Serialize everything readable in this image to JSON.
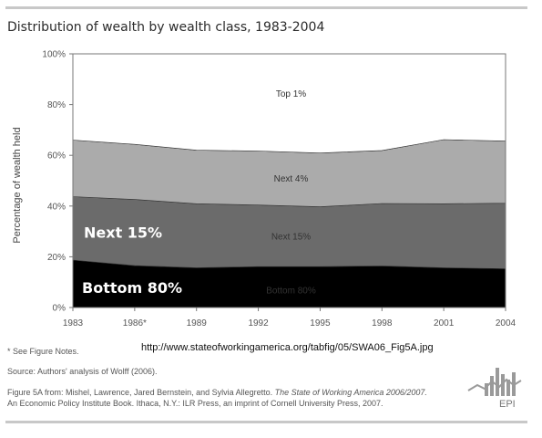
{
  "header": {
    "title": "Distribution of wealth by wealth class, 1983-2004"
  },
  "chart_data": {
    "type": "area",
    "stacked": true,
    "categories": [
      "1983",
      "1986*",
      "1989",
      "1992",
      "1995",
      "1998",
      "2001",
      "2004"
    ],
    "ylabel": "Percentage of wealth held",
    "ylim": [
      0,
      100
    ],
    "yticks": [
      "0%",
      "20%",
      "40%",
      "60%",
      "80%",
      "100%"
    ],
    "series": [
      {
        "name": "Bottom 80%",
        "values": [
          18.7,
          16.5,
          15.7,
          16.1,
          16.1,
          16.4,
          15.7,
          15.3
        ],
        "color": "#000000"
      },
      {
        "name": "Next 15%",
        "values": [
          25.0,
          26.1,
          25.2,
          24.3,
          23.6,
          24.6,
          25.2,
          25.8
        ],
        "color": "#6b6b6b"
      },
      {
        "name": "Next 4%",
        "values": [
          22.3,
          21.7,
          21.1,
          21.3,
          21.2,
          20.9,
          25.3,
          24.5
        ],
        "color": "#ababab"
      },
      {
        "name": "Top 1%",
        "values": [
          34.0,
          35.7,
          38.0,
          38.3,
          39.1,
          38.1,
          33.8,
          34.4
        ],
        "color": "#ffffff"
      }
    ],
    "area_labels": [
      "Bottom 80%",
      "Next 15%",
      "Next 4%",
      "Top 1%"
    ],
    "overlay_labels": [
      "Next 15%",
      "Bottom 80%"
    ]
  },
  "source_url": "http://www.stateofworkingamerica.org/tabfig/05/SWA06_Fig5A.jpg",
  "notes": {
    "see_notes": "* See Figure Notes.",
    "source": "Source: Authors' analysis of Wolff (2006).",
    "citation_line1_prefix": "Figure 5A from: Mishel, Lawrence, Jared Bernstein, and Sylvia Allegretto. ",
    "citation_line1_title": "The State of Working America 2006/2007.",
    "citation_line2": "An Economic Policy Institute Book. Ithaca, N.Y.: ILR Press, an imprint of Cornell University Press, 2007."
  },
  "logo": {
    "text": "EPI"
  }
}
